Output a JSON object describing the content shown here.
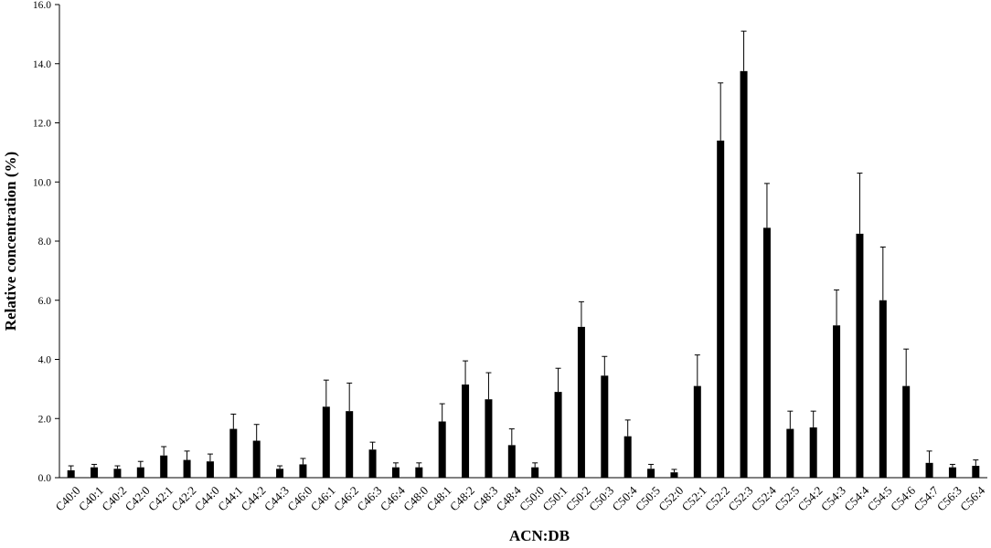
{
  "chart_data": {
    "type": "bar",
    "title": "",
    "xlabel": "ACN:DB",
    "ylabel": "Relative concentration (%)",
    "ylim": [
      0,
      16
    ],
    "yticks": [
      "0.0",
      "2.0",
      "4.0",
      "6.0",
      "8.0",
      "10.0",
      "12.0",
      "14.0",
      "16.0"
    ],
    "grid": false,
    "legend": "none",
    "bar_color": "#000000",
    "categories": [
      "C40:0",
      "C40:1",
      "C40:2",
      "C42:0",
      "C42:1",
      "C42:2",
      "C44:0",
      "C44:1",
      "C44:2",
      "C44:3",
      "C46:0",
      "C46:1",
      "C46:2",
      "C46:3",
      "C46:4",
      "C48:0",
      "C48:1",
      "C48:2",
      "C48:3",
      "C48:4",
      "C50:0",
      "C50:1",
      "C50:2",
      "C50:3",
      "C50:4",
      "C50:5",
      "C52:0",
      "C52:1",
      "C52:2",
      "C52:3",
      "C52:4",
      "C52:5",
      "C54:2",
      "C54:3",
      "C54:4",
      "C54:5",
      "C54:6",
      "C54:7",
      "C56:3",
      "C56:4"
    ],
    "series": [
      {
        "values": [
          0.25,
          0.35,
          0.3,
          0.35,
          0.75,
          0.6,
          0.55,
          1.65,
          1.25,
          0.3,
          0.45,
          2.4,
          2.25,
          0.95,
          0.35,
          0.35,
          1.9,
          3.15,
          2.65,
          1.1,
          0.35,
          2.9,
          5.1,
          3.45,
          1.4,
          0.3,
          0.18,
          3.1,
          11.4,
          13.75,
          8.45,
          1.65,
          1.7,
          5.15,
          8.25,
          6.0,
          3.1,
          0.5,
          0.35,
          0.4
        ],
        "errors": [
          0.15,
          0.1,
          0.1,
          0.2,
          0.3,
          0.3,
          0.25,
          0.5,
          0.55,
          0.1,
          0.2,
          0.9,
          0.95,
          0.25,
          0.15,
          0.15,
          0.6,
          0.8,
          0.9,
          0.55,
          0.15,
          0.8,
          0.85,
          0.65,
          0.55,
          0.15,
          0.1,
          1.05,
          1.95,
          1.35,
          1.5,
          0.6,
          0.55,
          1.2,
          2.05,
          1.8,
          1.25,
          0.4,
          0.1,
          0.2
        ]
      }
    ]
  }
}
